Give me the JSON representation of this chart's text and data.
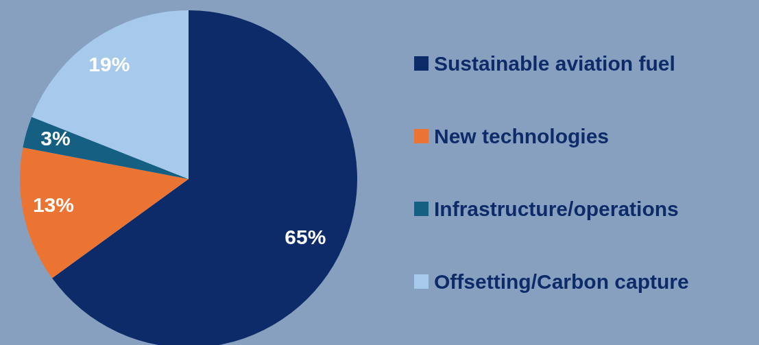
{
  "chart_data": {
    "type": "pie",
    "categories": [
      "Sustainable aviation fuel",
      "New technologies",
      "Infrastructure/operations",
      "Offsetting/Carbon capture"
    ],
    "values": [
      65,
      13,
      3,
      19
    ],
    "colors": [
      "#0d2b69",
      "#ec7432",
      "#155f82",
      "#a6c9ec"
    ],
    "value_labels": [
      "65%",
      "13%",
      "3%",
      "19%"
    ],
    "legend": "right"
  }
}
